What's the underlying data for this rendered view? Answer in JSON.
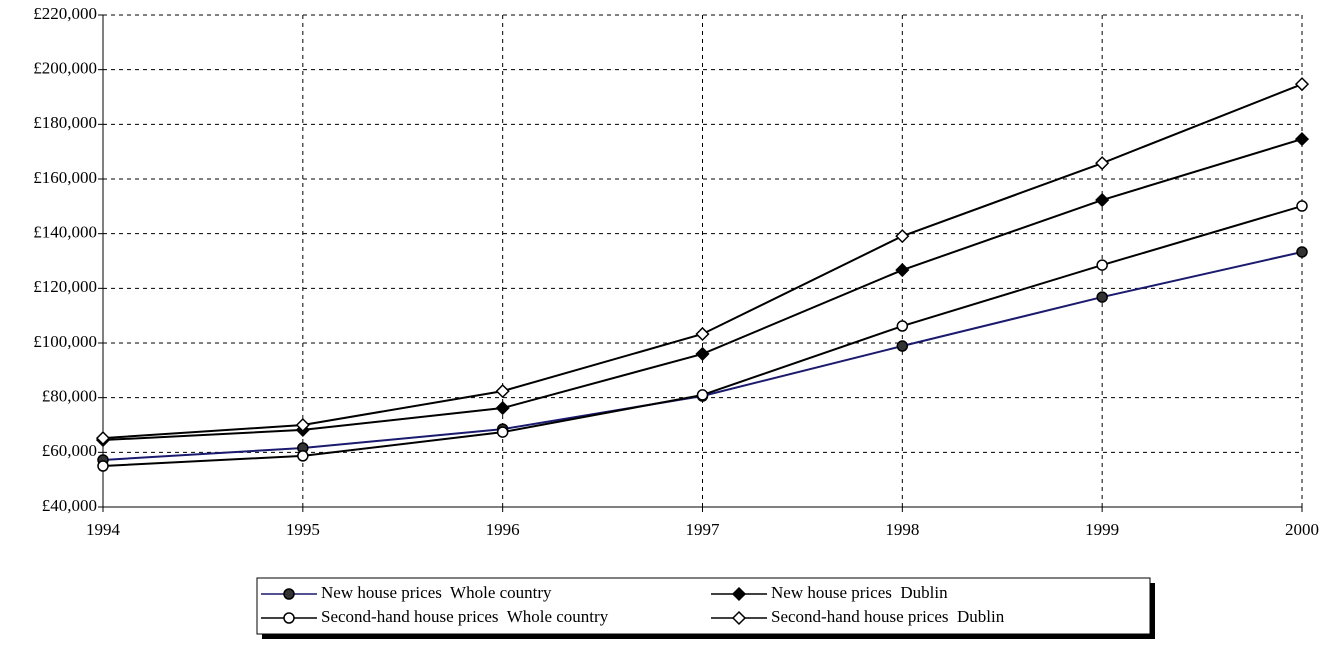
{
  "chart_data": {
    "type": "line",
    "x": [
      1994,
      1995,
      1996,
      1997,
      1998,
      1999,
      2000
    ],
    "xlim": [
      1994,
      2000
    ],
    "xticks": [
      1994,
      1995,
      1996,
      1997,
      1998,
      1999,
      2000
    ],
    "ylim": [
      40000,
      220000
    ],
    "yticks": [
      {
        "value": 40000,
        "label": "£40,000"
      },
      {
        "value": 60000,
        "label": "£60,000"
      },
      {
        "value": 80000,
        "label": "£80,000"
      },
      {
        "value": 100000,
        "label": "£100,000"
      },
      {
        "value": 120000,
        "label": "£120,000"
      },
      {
        "value": 140000,
        "label": "£140,000"
      },
      {
        "value": 160000,
        "label": "£160,000"
      },
      {
        "value": 180000,
        "label": "£180,000"
      },
      {
        "value": 200000,
        "label": "£200,000"
      },
      {
        "value": 220000,
        "label": "£220,000"
      }
    ],
    "grid": true,
    "legend": "bottom",
    "series": [
      {
        "name": "New house prices  Whole country",
        "color": "#1a1a6e",
        "marker": "circle",
        "marker_fill": "#333333",
        "values": [
          57200,
          61600,
          68500,
          80600,
          98900,
          116800,
          133300
        ]
      },
      {
        "name": "New house prices  Dublin",
        "color": "#000000",
        "marker": "diamond",
        "marker_fill": "#000000",
        "values": [
          64500,
          68200,
          76200,
          96000,
          126700,
          152300,
          174600
        ]
      },
      {
        "name": "Second-hand house prices  Whole country",
        "color": "#000000",
        "marker": "circle",
        "marker_fill": "#ffffff",
        "values": [
          55000,
          58700,
          67400,
          81000,
          106200,
          128500,
          150100
        ]
      },
      {
        "name": "Second-hand house prices  Dublin",
        "color": "#000000",
        "marker": "diamond",
        "marker_fill": "#ffffff",
        "values": [
          65200,
          70000,
          82400,
          103300,
          139100,
          165800,
          194700
        ]
      }
    ]
  }
}
